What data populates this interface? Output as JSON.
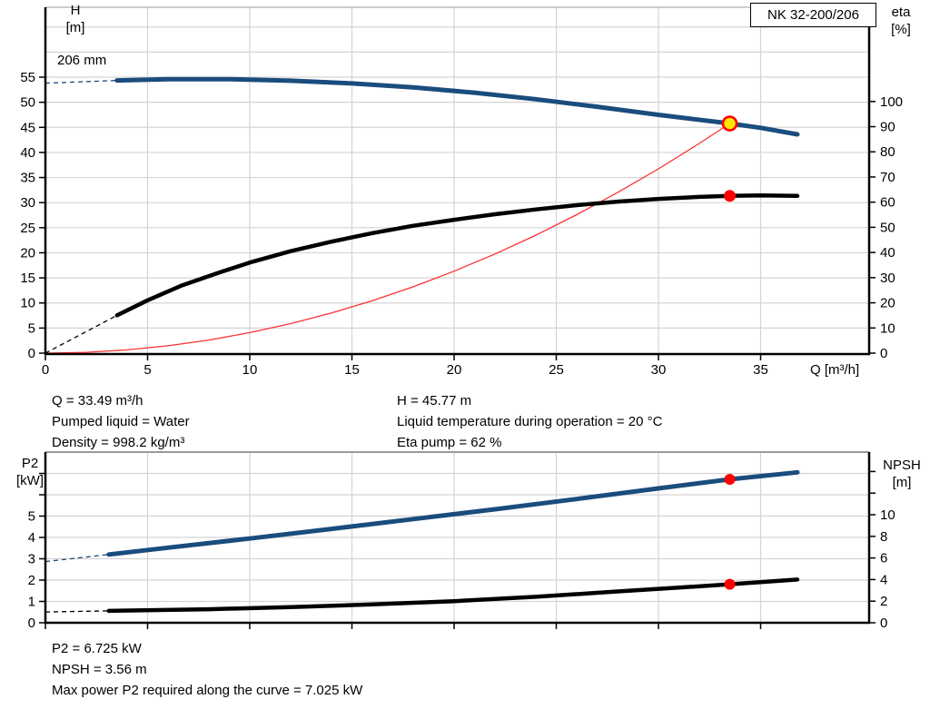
{
  "colors": {
    "curve_blue": "#1a4c7d",
    "curve_black": "#000000",
    "curve_red": "#ff3030",
    "marker_red": "#ff0000",
    "marker_yellow": "#ffe600",
    "grid": "#d4d4d4",
    "border_gray": "#9a9a9a",
    "axis": "#000000"
  },
  "chart_data": [
    {
      "type": "line",
      "title": "NK 32-200/206",
      "curve_label": "206 mm",
      "x_label": "Q [m³/h]",
      "x_ticks": [
        0,
        5,
        10,
        15,
        20,
        25,
        30,
        35
      ],
      "x_max": 40.3,
      "left_axis": {
        "name": "H",
        "unit": "[m]",
        "range": [
          0,
          69
        ],
        "ticks": [
          {
            "v": 0,
            "t": "0"
          },
          {
            "v": 5,
            "t": "5"
          },
          {
            "v": 10,
            "t": "10"
          },
          {
            "v": 15,
            "t": "15"
          },
          {
            "v": 20,
            "t": "20"
          },
          {
            "v": 25,
            "t": "25"
          },
          {
            "v": 30,
            "t": "30"
          },
          {
            "v": 35,
            "t": "35"
          },
          {
            "v": 40,
            "t": "40"
          },
          {
            "v": 45,
            "t": "45"
          },
          {
            "v": 50,
            "t": "50"
          },
          {
            "v": 55,
            "t": "55"
          }
        ],
        "grid": [
          5,
          10,
          15,
          20,
          25,
          30,
          35,
          40,
          45,
          50,
          55,
          60,
          65
        ]
      },
      "right_axis": {
        "name": "eta",
        "unit": "[%]",
        "range": [
          0,
          137
        ],
        "ticks": [
          {
            "v": 0,
            "t": "0"
          },
          {
            "v": 10,
            "t": "10"
          },
          {
            "v": 20,
            "t": "20"
          },
          {
            "v": 30,
            "t": "30"
          },
          {
            "v": 40,
            "t": "40"
          },
          {
            "v": 50,
            "t": "50"
          },
          {
            "v": 60,
            "t": "60"
          },
          {
            "v": 70,
            "t": "70"
          },
          {
            "v": 80,
            "t": "80"
          },
          {
            "v": 90,
            "t": "90"
          },
          {
            "v": 100,
            "t": "100"
          }
        ]
      },
      "series": [
        {
          "id": "system-curve",
          "name": "System curve to duty point",
          "axis": "left",
          "color_key": "curve_red",
          "width": 1.3,
          "points": [
            [
              0,
              0
            ],
            [
              2,
              0.16
            ],
            [
              4,
              0.65
            ],
            [
              6,
              1.47
            ],
            [
              8,
              2.61
            ],
            [
              10,
              4.08
            ],
            [
              12,
              5.88
            ],
            [
              14,
              8.0
            ],
            [
              16,
              10.45
            ],
            [
              18,
              13.22
            ],
            [
              20,
              16.33
            ],
            [
              22,
              19.75
            ],
            [
              24,
              23.51
            ],
            [
              26,
              27.59
            ],
            [
              28,
              32.0
            ],
            [
              30,
              36.73
            ],
            [
              32,
              41.79
            ],
            [
              33.49,
              45.77
            ]
          ]
        },
        {
          "id": "efficiency-curve",
          "name": "Efficiency (eta)",
          "axis": "right",
          "color_key": "curve_black",
          "width": 4.5,
          "lead": [
            [
              0,
              0
            ],
            [
              3.5,
              15
            ]
          ],
          "points": [
            [
              3.5,
              15
            ],
            [
              5,
              21
            ],
            [
              6.7,
              27
            ],
            [
              8.5,
              32
            ],
            [
              10,
              36
            ],
            [
              12,
              40.5
            ],
            [
              14,
              44.3
            ],
            [
              16,
              47.7
            ],
            [
              18,
              50.6
            ],
            [
              20,
              53
            ],
            [
              22,
              55.2
            ],
            [
              24,
              57.1
            ],
            [
              26,
              58.8
            ],
            [
              28,
              60.2
            ],
            [
              30,
              61.3
            ],
            [
              32,
              62.1
            ],
            [
              33.49,
              62.5
            ],
            [
              35,
              62.7
            ],
            [
              36.8,
              62.5
            ]
          ]
        },
        {
          "id": "qh-curve",
          "name": "QH curve 206 mm",
          "axis": "left",
          "color_key": "curve_blue",
          "width": 5,
          "lead": [
            [
              0,
              53.8
            ],
            [
              3.5,
              54.35
            ]
          ],
          "points": [
            [
              3.5,
              54.35
            ],
            [
              6,
              54.6
            ],
            [
              9,
              54.6
            ],
            [
              12,
              54.3
            ],
            [
              15,
              53.75
            ],
            [
              18,
              52.95
            ],
            [
              21,
              51.9
            ],
            [
              24,
              50.6
            ],
            [
              27,
              49.1
            ],
            [
              30,
              47.5
            ],
            [
              33.49,
              45.77
            ],
            [
              35,
              44.9
            ],
            [
              36.8,
              43.6
            ]
          ]
        }
      ],
      "markers": [
        {
          "id": "duty-point-qh",
          "axis": "left",
          "q": 33.49,
          "v": 45.77,
          "style": "duty",
          "r": 7.5
        },
        {
          "id": "duty-point-eta",
          "axis": "right",
          "q": 33.49,
          "v": 62.5,
          "style": "dot",
          "r": 6.5
        }
      ]
    },
    {
      "type": "line",
      "title": "",
      "x_label": "",
      "x_ticks": [
        0,
        5,
        10,
        15,
        20,
        25,
        30,
        35
      ],
      "x_max": 40.3,
      "left_axis": {
        "name": "P2",
        "unit": "[kW]",
        "range": [
          0,
          8
        ],
        "ticks": [
          {
            "v": 0,
            "t": "0"
          },
          {
            "v": 1,
            "t": "1"
          },
          {
            "v": 2,
            "t": "2"
          },
          {
            "v": 3,
            "t": "3"
          },
          {
            "v": 4,
            "t": "4"
          },
          {
            "v": 5,
            "t": "5"
          },
          {
            "v": 6,
            "t": ""
          },
          {
            "v": 7,
            "t": ""
          }
        ],
        "grid": [
          1,
          2,
          3,
          4,
          5,
          6,
          7
        ]
      },
      "right_axis": {
        "name": "NPSH",
        "unit": "[m]",
        "range": [
          0,
          15.8
        ],
        "ticks": [
          {
            "v": 0,
            "t": "0"
          },
          {
            "v": 2,
            "t": "2"
          },
          {
            "v": 4,
            "t": "4"
          },
          {
            "v": 6,
            "t": "6"
          },
          {
            "v": 8,
            "t": "8"
          },
          {
            "v": 10,
            "t": "10"
          },
          {
            "v": 12,
            "t": ""
          },
          {
            "v": 14,
            "t": ""
          }
        ]
      },
      "series": [
        {
          "id": "p2-curve",
          "name": "P2 power curve",
          "axis": "left",
          "color_key": "curve_blue",
          "width": 5,
          "lead": [
            [
              0,
              2.87
            ],
            [
              3.1,
              3.2
            ]
          ],
          "points": [
            [
              3.1,
              3.2
            ],
            [
              6,
              3.52
            ],
            [
              10,
              3.95
            ],
            [
              14,
              4.4
            ],
            [
              18,
              4.86
            ],
            [
              22,
              5.32
            ],
            [
              26,
              5.8
            ],
            [
              30,
              6.3
            ],
            [
              33.49,
              6.725
            ],
            [
              36.8,
              7.05
            ]
          ]
        },
        {
          "id": "npsh-curve",
          "name": "NPSH curve",
          "axis": "right",
          "color_key": "curve_black",
          "width": 4.5,
          "lead": [
            [
              0,
              1.0
            ],
            [
              3.1,
              1.1
            ]
          ],
          "points": [
            [
              3.1,
              1.1
            ],
            [
              8,
              1.25
            ],
            [
              12,
              1.45
            ],
            [
              16,
              1.7
            ],
            [
              20,
              2.0
            ],
            [
              24,
              2.4
            ],
            [
              28,
              2.9
            ],
            [
              31,
              3.25
            ],
            [
              33.49,
              3.56
            ],
            [
              36.8,
              4.0
            ]
          ]
        }
      ],
      "markers": [
        {
          "id": "duty-point-p2",
          "axis": "left",
          "q": 33.49,
          "v": 6.725,
          "style": "dot",
          "r": 6
        },
        {
          "id": "duty-point-npsh",
          "axis": "right",
          "q": 33.49,
          "v": 3.56,
          "style": "dot",
          "r": 6
        }
      ]
    }
  ],
  "info_top": {
    "left": [
      "Q = 33.49 m³/h",
      "Pumped liquid = Water",
      "Density = 998.2 kg/m³"
    ],
    "right": [
      "H = 45.77 m",
      "Liquid temperature during operation = 20 °C",
      "Eta pump = 62 %"
    ]
  },
  "info_bottom": {
    "lines": [
      "P2 = 6.725 kW",
      "NPSH = 3.56 m",
      "Max power P2 required along the curve = 7.025 kW"
    ]
  }
}
